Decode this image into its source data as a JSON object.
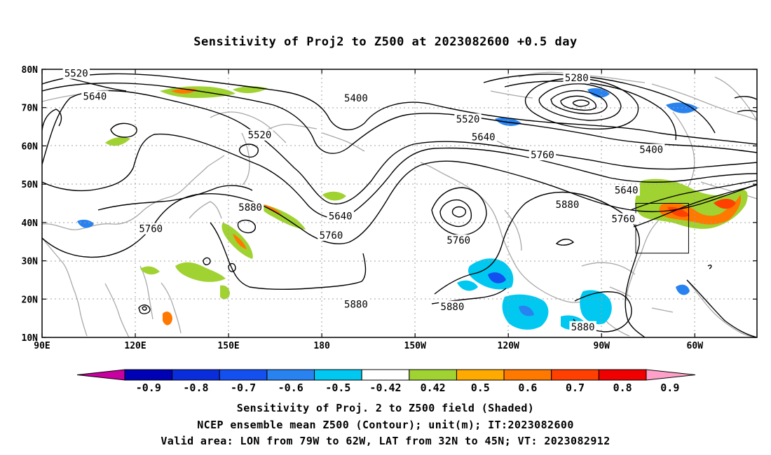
{
  "title": "Sensitivity of Proj2 to Z500 at 2023082600 +0.5 day",
  "map": {
    "lon_ticks": [
      "90E",
      "120E",
      "150E",
      "180",
      "150W",
      "120W",
      "90W",
      "60W"
    ],
    "lat_ticks": [
      "80N",
      "70N",
      "60N",
      "50N",
      "40N",
      "30N",
      "20N",
      "10N"
    ],
    "contour_labels": [
      {
        "text": "5520",
        "lon": 101,
        "lat": 78.8
      },
      {
        "text": "5640",
        "lon": 107,
        "lat": 72.8
      },
      {
        "text": "5400",
        "lon": 191,
        "lat": 72.3
      },
      {
        "text": "5520",
        "lon": 160,
        "lat": 62.7
      },
      {
        "text": "5280",
        "lon": 262,
        "lat": 77.6
      },
      {
        "text": "5520",
        "lon": 227,
        "lat": 66.8
      },
      {
        "text": "5640",
        "lon": 232,
        "lat": 62.2
      },
      {
        "text": "5760",
        "lon": 251,
        "lat": 57.5
      },
      {
        "text": "5400",
        "lon": 286,
        "lat": 58.9
      },
      {
        "text": "5880",
        "lon": 157,
        "lat": 43.8
      },
      {
        "text": "5760",
        "lon": 125,
        "lat": 38.2
      },
      {
        "text": "5640",
        "lon": 186,
        "lat": 41.5
      },
      {
        "text": "5760",
        "lon": 183,
        "lat": 36.5
      },
      {
        "text": "5880",
        "lon": 259,
        "lat": 44.5
      },
      {
        "text": "5760",
        "lon": 224,
        "lat": 35.2
      },
      {
        "text": "5640",
        "lon": 278,
        "lat": 48.3
      },
      {
        "text": "5760",
        "lon": 277,
        "lat": 40.8
      },
      {
        "text": "5880",
        "lon": 191,
        "lat": 18.5
      },
      {
        "text": "5880",
        "lon": 222,
        "lat": 17.9
      },
      {
        "text": "5880",
        "lon": 264,
        "lat": 12.6
      }
    ],
    "valid_box": {
      "lon_min": 281,
      "lon_max": 298,
      "lat_min": 32,
      "lat_max": 45
    }
  },
  "colorbar": {
    "labels": [
      "-0.9",
      "-0.8",
      "-0.7",
      "-0.6",
      "-0.5",
      "-0.42",
      "0.42",
      "0.5",
      "0.6",
      "0.7",
      "0.8",
      "0.9"
    ],
    "colors": [
      "#0000b4",
      "#0a2ddc",
      "#1450f0",
      "#2882f0",
      "#00c8f0",
      "#ffffff",
      "#a0d232",
      "#ffaa00",
      "#ff7800",
      "#ff4000",
      "#f00000"
    ],
    "low_arrow_color": "#c800a0",
    "high_arrow_color": "#ffa0c8"
  },
  "captions": [
    "Sensitivity of Proj. 2 to Z500 field (Shaded)",
    "NCEP ensemble mean Z500 (Contour); unit(m); IT:2023082600",
    "Valid area: LON from 79W to 62W, LAT from 32N to 45N; VT: 2023082912"
  ]
}
